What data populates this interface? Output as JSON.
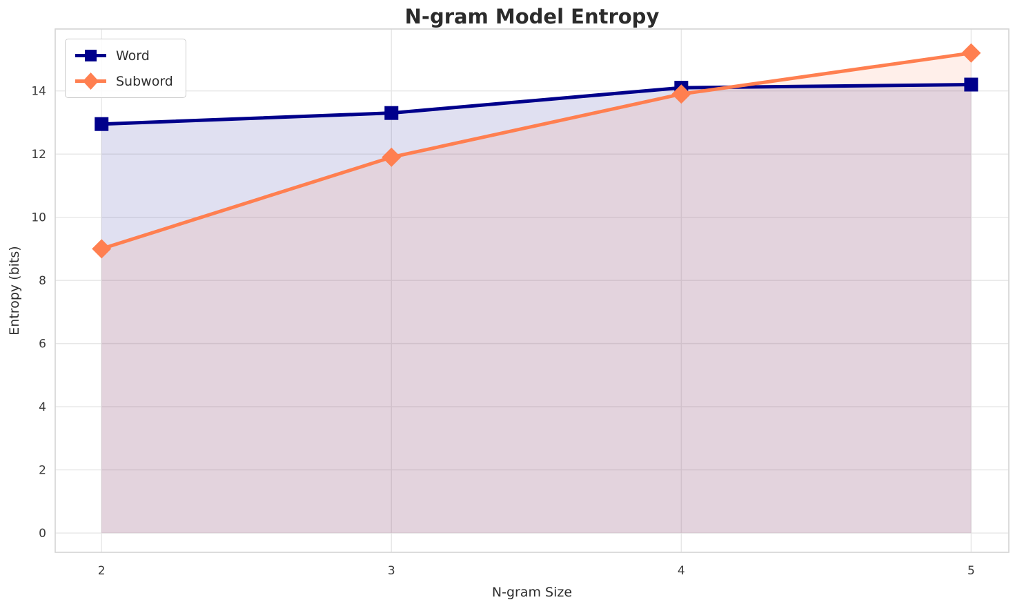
{
  "chart_data": {
    "type": "line",
    "title": "N-gram Model Entropy",
    "xlabel": "N-gram Size",
    "ylabel": "Entropy (bits)",
    "x": [
      2,
      3,
      4,
      5
    ],
    "series": [
      {
        "name": "Word",
        "values": [
          12.95,
          13.3,
          14.1,
          14.2
        ],
        "color": "#00008B",
        "marker": "square"
      },
      {
        "name": "Subword",
        "values": [
          9.0,
          11.9,
          13.9,
          15.2
        ],
        "color": "#FF7F50",
        "marker": "diamond"
      }
    ],
    "xlim": [
      1.84,
      5.13
    ],
    "ylim": [
      -0.61,
      15.96
    ],
    "xticks": [
      2,
      3,
      4,
      5
    ],
    "yticks": [
      0,
      2,
      4,
      6,
      8,
      10,
      12,
      14
    ],
    "grid": true,
    "grid_color": "#e7e7e7",
    "frame_color": "#d4d4d4",
    "fill_to_zero": true,
    "fill_opacity": 0.12,
    "legend_position": "upper left",
    "line_width": 5
  }
}
